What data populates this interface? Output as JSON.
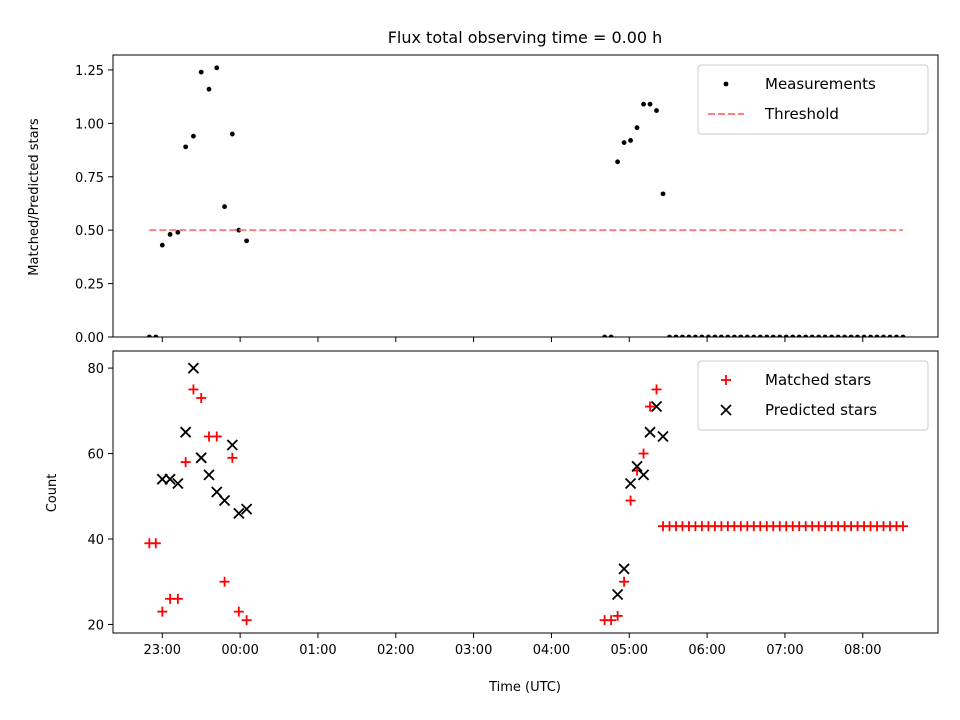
{
  "chart_data": [
    {
      "type": "scatter",
      "title": "Flux total observing time = 0.00 h",
      "xlabel": "",
      "ylabel": "Matched/Predicted stars",
      "xlim": [
        "22:22",
        "08:58"
      ],
      "ylim": [
        0.0,
        1.32
      ],
      "yticks": [
        0.0,
        0.25,
        0.5,
        0.75,
        1.0,
        1.25
      ],
      "ytick_labels": [
        "0.00",
        "0.25",
        "0.50",
        "0.75",
        "1.00",
        "1.25"
      ],
      "grid": false,
      "legend_position": "top-right",
      "series": [
        {
          "name": "Measurements",
          "kind": "scatter",
          "marker": "dot",
          "color": "#000000",
          "points": [
            [
              "22:50",
              0.0
            ],
            [
              "22:55",
              0.0
            ],
            [
              "23:00",
              0.43
            ],
            [
              "23:06",
              0.48
            ],
            [
              "23:12",
              0.49
            ],
            [
              "23:18",
              0.89
            ],
            [
              "23:24",
              0.94
            ],
            [
              "23:30",
              1.24
            ],
            [
              "23:36",
              1.16
            ],
            [
              "23:42",
              1.26
            ],
            [
              "23:48",
              0.61
            ],
            [
              "23:54",
              0.95
            ],
            [
              "23:59",
              0.5
            ],
            [
              "00:05",
              0.45
            ],
            [
              "04:41",
              0.0
            ],
            [
              "04:46",
              0.0
            ],
            [
              "04:51",
              0.82
            ],
            [
              "04:56",
              0.91
            ],
            [
              "05:01",
              0.92
            ],
            [
              "05:06",
              0.98
            ],
            [
              "05:11",
              1.09
            ],
            [
              "05:16",
              1.09
            ],
            [
              "05:21",
              1.06
            ],
            [
              "05:26",
              0.67
            ],
            [
              "05:31",
              0.0
            ],
            [
              "05:36",
              0.0
            ],
            [
              "05:41",
              0.0
            ],
            [
              "05:46",
              0.0
            ],
            [
              "05:51",
              0.0
            ],
            [
              "05:56",
              0.0
            ],
            [
              "06:01",
              0.0
            ],
            [
              "06:06",
              0.0
            ],
            [
              "06:11",
              0.0
            ],
            [
              "06:16",
              0.0
            ],
            [
              "06:21",
              0.0
            ],
            [
              "06:26",
              0.0
            ],
            [
              "06:31",
              0.0
            ],
            [
              "06:36",
              0.0
            ],
            [
              "06:41",
              0.0
            ],
            [
              "06:46",
              0.0
            ],
            [
              "06:51",
              0.0
            ],
            [
              "06:56",
              0.0
            ],
            [
              "07:01",
              0.0
            ],
            [
              "07:06",
              0.0
            ],
            [
              "07:11",
              0.0
            ],
            [
              "07:16",
              0.0
            ],
            [
              "07:21",
              0.0
            ],
            [
              "07:26",
              0.0
            ],
            [
              "07:31",
              0.0
            ],
            [
              "07:36",
              0.0
            ],
            [
              "07:41",
              0.0
            ],
            [
              "07:46",
              0.0
            ],
            [
              "07:51",
              0.0
            ],
            [
              "07:56",
              0.0
            ],
            [
              "08:01",
              0.0
            ],
            [
              "08:06",
              0.0
            ],
            [
              "08:11",
              0.0
            ],
            [
              "08:16",
              0.0
            ],
            [
              "08:21",
              0.0
            ],
            [
              "08:26",
              0.0
            ],
            [
              "08:31",
              0.0
            ]
          ]
        },
        {
          "name": "Threshold",
          "kind": "line",
          "linestyle": "dashed",
          "color": "#ff7f7f",
          "points": [
            [
              "22:50",
              0.5
            ],
            [
              "08:31",
              0.5
            ]
          ]
        }
      ]
    },
    {
      "type": "scatter",
      "title": "",
      "xlabel": "Time (UTC)",
      "ylabel": "Count",
      "xlim": [
        "22:22",
        "08:58"
      ],
      "ylim": [
        18,
        84
      ],
      "yticks": [
        20,
        40,
        60,
        80
      ],
      "ytick_labels": [
        "20",
        "40",
        "60",
        "80"
      ],
      "xticks": [
        "23:00",
        "00:00",
        "01:00",
        "02:00",
        "03:00",
        "04:00",
        "05:00",
        "06:00",
        "07:00",
        "08:00"
      ],
      "grid": false,
      "legend_position": "top-right",
      "series": [
        {
          "name": "Matched stars",
          "kind": "scatter",
          "marker": "plus",
          "color": "#ff0000",
          "points": [
            [
              "22:50",
              39
            ],
            [
              "22:55",
              39
            ],
            [
              "23:00",
              23
            ],
            [
              "23:06",
              26
            ],
            [
              "23:12",
              26
            ],
            [
              "23:18",
              58
            ],
            [
              "23:24",
              75
            ],
            [
              "23:30",
              73
            ],
            [
              "23:36",
              64
            ],
            [
              "23:42",
              64
            ],
            [
              "23:48",
              30
            ],
            [
              "23:54",
              59
            ],
            [
              "23:59",
              23
            ],
            [
              "00:05",
              21
            ],
            [
              "04:41",
              21
            ],
            [
              "04:46",
              21
            ],
            [
              "04:51",
              22
            ],
            [
              "04:56",
              30
            ],
            [
              "05:01",
              49
            ],
            [
              "05:06",
              56
            ],
            [
              "05:11",
              60
            ],
            [
              "05:16",
              71
            ],
            [
              "05:21",
              75
            ],
            [
              "05:26",
              43
            ],
            [
              "05:31",
              43
            ],
            [
              "05:36",
              43
            ],
            [
              "05:41",
              43
            ],
            [
              "05:46",
              43
            ],
            [
              "05:51",
              43
            ],
            [
              "05:56",
              43
            ],
            [
              "06:01",
              43
            ],
            [
              "06:06",
              43
            ],
            [
              "06:11",
              43
            ],
            [
              "06:16",
              43
            ],
            [
              "06:21",
              43
            ],
            [
              "06:26",
              43
            ],
            [
              "06:31",
              43
            ],
            [
              "06:36",
              43
            ],
            [
              "06:41",
              43
            ],
            [
              "06:46",
              43
            ],
            [
              "06:51",
              43
            ],
            [
              "06:56",
              43
            ],
            [
              "07:01",
              43
            ],
            [
              "07:06",
              43
            ],
            [
              "07:11",
              43
            ],
            [
              "07:16",
              43
            ],
            [
              "07:21",
              43
            ],
            [
              "07:26",
              43
            ],
            [
              "07:31",
              43
            ],
            [
              "07:36",
              43
            ],
            [
              "07:41",
              43
            ],
            [
              "07:46",
              43
            ],
            [
              "07:51",
              43
            ],
            [
              "07:56",
              43
            ],
            [
              "08:01",
              43
            ],
            [
              "08:06",
              43
            ],
            [
              "08:11",
              43
            ],
            [
              "08:16",
              43
            ],
            [
              "08:21",
              43
            ],
            [
              "08:26",
              43
            ],
            [
              "08:31",
              43
            ]
          ]
        },
        {
          "name": "Predicted stars",
          "kind": "scatter",
          "marker": "x",
          "color": "#000000",
          "points": [
            [
              "23:00",
              54
            ],
            [
              "23:06",
              54
            ],
            [
              "23:12",
              53
            ],
            [
              "23:18",
              65
            ],
            [
              "23:24",
              80
            ],
            [
              "23:30",
              59
            ],
            [
              "23:36",
              55
            ],
            [
              "23:42",
              51
            ],
            [
              "23:48",
              49
            ],
            [
              "23:54",
              62
            ],
            [
              "23:59",
              46
            ],
            [
              "00:05",
              47
            ],
            [
              "04:51",
              27
            ],
            [
              "04:56",
              33
            ],
            [
              "05:01",
              53
            ],
            [
              "05:06",
              57
            ],
            [
              "05:11",
              55
            ],
            [
              "05:16",
              65
            ],
            [
              "05:21",
              71
            ],
            [
              "05:26",
              64
            ]
          ]
        }
      ]
    }
  ]
}
